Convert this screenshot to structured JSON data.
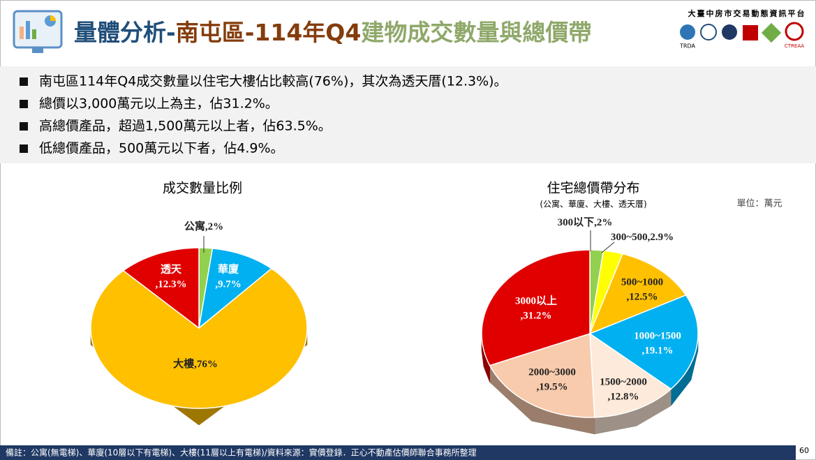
{
  "header": {
    "title_parts": [
      "量體分析-",
      "南屯區-114年Q4",
      "建物成交數量與總價帶"
    ],
    "platform": "大臺中房市交易動態資訊平台",
    "logos": [
      "TRDA",
      "CTREAA"
    ]
  },
  "bullets": [
    "南屯區114年Q4成交數量以住宅大樓佔比較高(76%)，其次為透天厝(12.3%)。",
    "總價以3,000萬元以上為主，佔31.2%。",
    "高總價產品，超過1,500萬元以上者，佔63.5%。",
    "低總價產品，500萬元以下者，佔4.9%。"
  ],
  "chart_data": [
    {
      "type": "pie",
      "title": "成交數量比例",
      "categories": [
        "公寓",
        "華廈",
        "大樓",
        "透天"
      ],
      "values": [
        2,
        9.7,
        76,
        12.3
      ],
      "value_labels": [
        ",2%",
        ",9.7%",
        ",76%",
        ",12.3%"
      ],
      "colors": [
        "#92d050",
        "#00b0f0",
        "#ffc000",
        "#e00000"
      ]
    },
    {
      "type": "pie",
      "title": "住宅總價帶分布",
      "subtitle": "(公寓、華廈、大樓、透天厝)",
      "unit": "單位：萬元",
      "categories": [
        "300以下",
        "300~500",
        "500~1000",
        "1000~1500",
        "1500~2000",
        "2000~3000",
        "3000以上"
      ],
      "values": [
        2,
        2.9,
        12.5,
        19.1,
        12.8,
        19.5,
        31.2
      ],
      "value_labels": [
        ",2%",
        ",2.9%",
        ",12.5%",
        ",19.1%",
        ",12.8%",
        ",19.5%",
        ",31.2%"
      ],
      "colors": [
        "#92d050",
        "#ffff00",
        "#ffc000",
        "#00b0f0",
        "#fdeada",
        "#f8cbad",
        "#e00000"
      ]
    }
  ],
  "footer": "備註：公寓(無電梯)、華廈(10層以下有電梯)、大樓(11層以上有電梯)/資料來源：實價登錄．正心不動產估價師聯合事務所整理",
  "page_number": "60"
}
